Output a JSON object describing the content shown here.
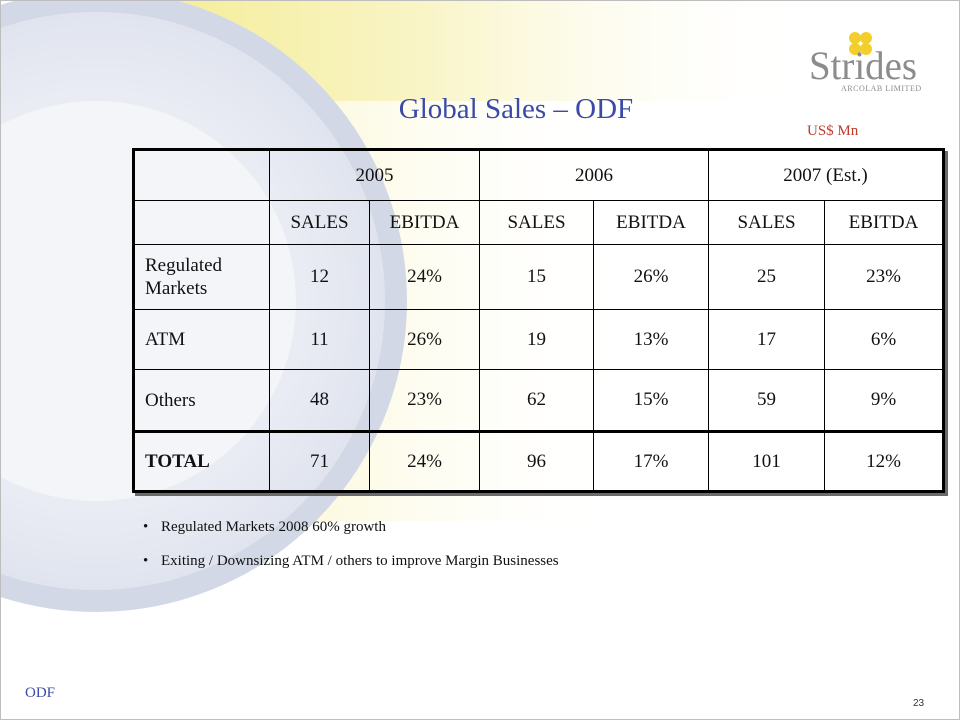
{
  "title": "Global Sales – ODF",
  "unit_note": "US$ Mn",
  "logo": {
    "name": "Strides",
    "sub": "ARCOLAB LIMITED"
  },
  "table": {
    "years": [
      "2005",
      "2006",
      "2007 (Est.)"
    ],
    "subheaders": [
      "SALES",
      "EBITDA",
      "SALES",
      "EBITDA",
      "SALES",
      "EBITDA"
    ],
    "rows": [
      {
        "label": "Regulated Markets",
        "cells": [
          "12",
          "24%",
          "15",
          "26%",
          "25",
          "23%"
        ]
      },
      {
        "label": "ATM",
        "cells": [
          "11",
          "26%",
          "19",
          "13%",
          "17",
          "6%"
        ]
      },
      {
        "label": "Others",
        "cells": [
          "48",
          "23%",
          "62",
          "15%",
          "59",
          "9%"
        ]
      },
      {
        "label": "TOTAL",
        "cells": [
          "71",
          "24%",
          "96",
          "17%",
          "101",
          "12%"
        ]
      }
    ]
  },
  "bullets": [
    "Regulated Markets 2008 60% growth",
    "Exiting / Downsizing ATM / others to improve Margin Businesses"
  ],
  "footer": "ODF",
  "page_number": "23",
  "colors": {
    "title": "#3b4aa6",
    "unit": "#c0392b",
    "band_yellow": "#f6ee9a",
    "logo_yellow": "#f2cf2a",
    "logo_gray": "#8c8c8c"
  }
}
